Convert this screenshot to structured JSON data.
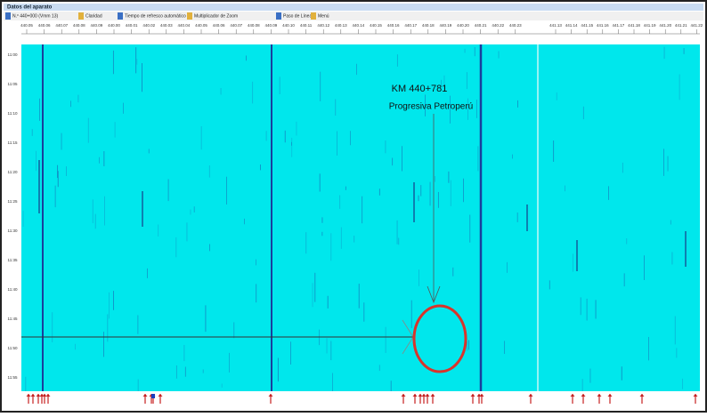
{
  "header": {
    "title": "Datos del aparato"
  },
  "toolbar": {
    "items": [
      "N.º 440+000 (Vmm 13)",
      "Claridad",
      "Tiempo de refresco automático",
      "Multiplicador de Zoom",
      "Paso de Línea",
      "Menú"
    ]
  },
  "ruler": {
    "labels": [
      "440.05",
      "440.06",
      "440.07",
      "440.08",
      "440.09",
      "440.00",
      "440.01",
      "440.02",
      "440.03",
      "440.04",
      "440.05",
      "440.06",
      "440.07",
      "440.08",
      "440.09",
      "440.10",
      "440.11",
      "440.12",
      "440.13",
      "440.14",
      "440.15",
      "440.16",
      "440.17",
      "440.18",
      "440.19",
      "440.20",
      "440.21",
      "440.22",
      "440.23",
      "441.13",
      "441.14",
      "441.15",
      "441.16",
      "441.17",
      "441.18",
      "441.19",
      "441.20",
      "441.21",
      "441.22"
    ]
  },
  "time_labels": [
    "11:00",
    "11:05",
    "11:10",
    "11:15",
    "11:20",
    "11:25",
    "11:30",
    "11:35",
    "11:40",
    "11:45",
    "11:50",
    "11:55"
  ],
  "annotation": {
    "km": "KM 440+781",
    "subtitle": "Progresiva Petroperú"
  }
}
